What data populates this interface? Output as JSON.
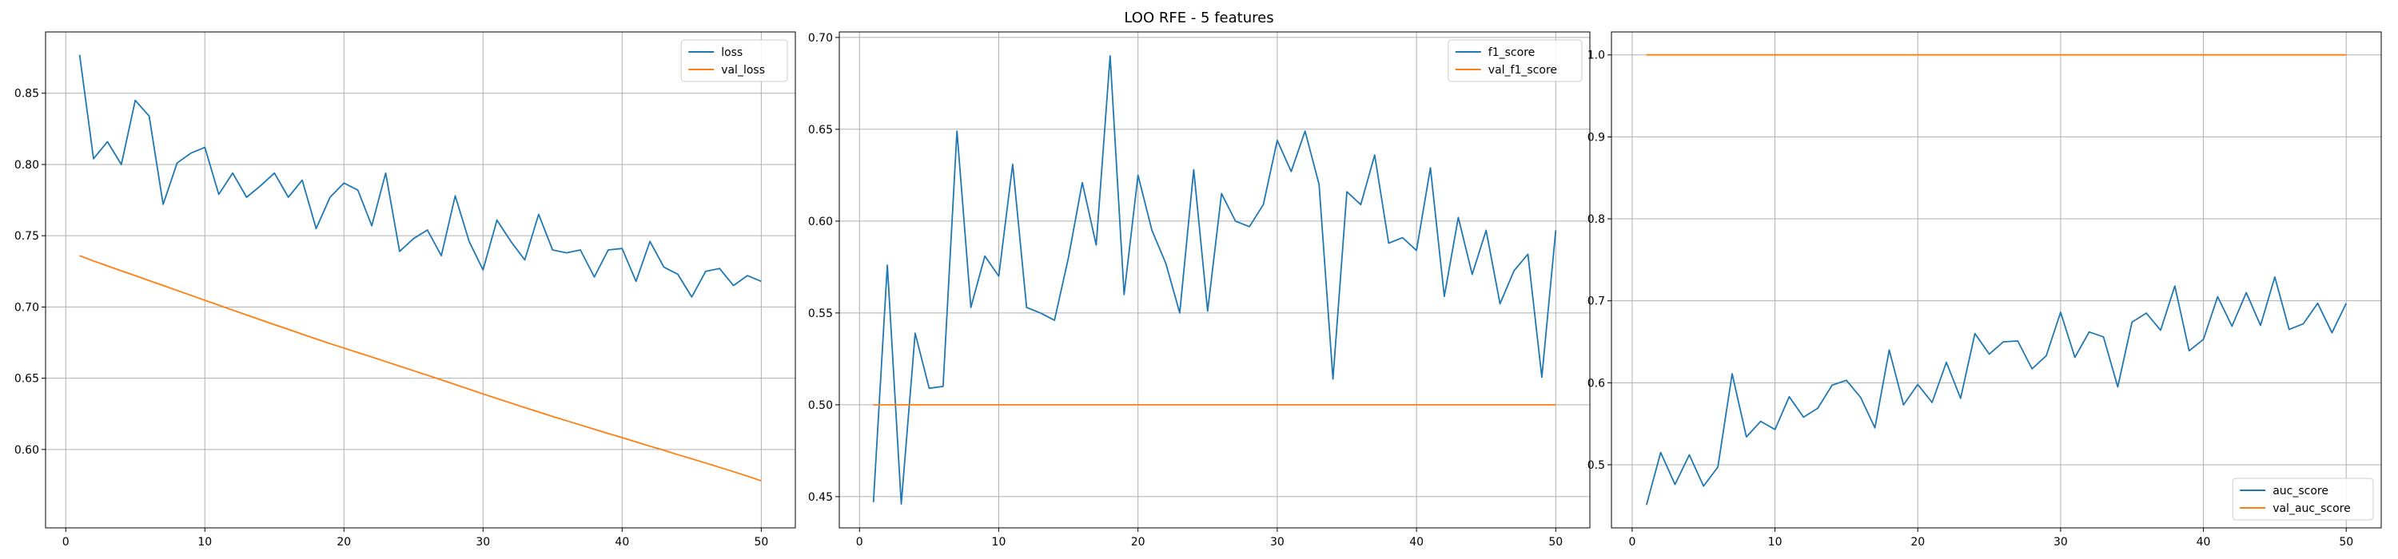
{
  "figure_title": "LOO RFE - 5 features",
  "colors": {
    "series1": "#1f77b4",
    "series2": "#ff7f0e",
    "grid": "#b0b0b0"
  },
  "chart_data": [
    {
      "type": "line",
      "title": "",
      "xlabel": "",
      "ylabel": "",
      "grid": true,
      "legend_position": "upper right",
      "xlim": [
        -1.45,
        52.45
      ],
      "ylim": [
        0.545,
        0.893
      ],
      "xticks": [
        0,
        10,
        20,
        30,
        40,
        50
      ],
      "yticks": [
        0.6,
        0.65,
        0.7,
        0.75,
        0.8,
        0.85
      ],
      "ytick_labels": [
        "0.60",
        "0.65",
        "0.70",
        "0.75",
        "0.80",
        "0.85"
      ],
      "x": [
        1,
        2,
        3,
        4,
        5,
        6,
        7,
        8,
        9,
        10,
        11,
        12,
        13,
        14,
        15,
        16,
        17,
        18,
        19,
        20,
        21,
        22,
        23,
        24,
        25,
        26,
        27,
        28,
        29,
        30,
        31,
        32,
        33,
        34,
        35,
        36,
        37,
        38,
        39,
        40,
        41,
        42,
        43,
        44,
        45,
        46,
        47,
        48,
        49,
        50
      ],
      "series": [
        {
          "name": "loss",
          "values": [
            0.877,
            0.804,
            0.816,
            0.8,
            0.845,
            0.834,
            0.772,
            0.801,
            0.808,
            0.812,
            0.779,
            0.794,
            0.777,
            0.785,
            0.794,
            0.777,
            0.789,
            0.755,
            0.777,
            0.787,
            0.782,
            0.757,
            0.794,
            0.739,
            0.748,
            0.754,
            0.736,
            0.778,
            0.746,
            0.726,
            0.761,
            0.746,
            0.733,
            0.765,
            0.74,
            0.738,
            0.74,
            0.721,
            0.74,
            0.741,
            0.718,
            0.746,
            0.728,
            0.723,
            0.707,
            0.725,
            0.727,
            0.715,
            0.722,
            0.718
          ]
        },
        {
          "name": "val_loss",
          "values": [
            0.736,
            0.7323,
            0.7288,
            0.7254,
            0.722,
            0.7185,
            0.7151,
            0.7116,
            0.7082,
            0.7047,
            0.7013,
            0.6978,
            0.6944,
            0.691,
            0.6876,
            0.6843,
            0.6809,
            0.6776,
            0.6743,
            0.6712,
            0.668,
            0.6649,
            0.6617,
            0.6585,
            0.6553,
            0.6521,
            0.6489,
            0.6456,
            0.6423,
            0.639,
            0.6358,
            0.6326,
            0.6294,
            0.6263,
            0.6232,
            0.6202,
            0.6172,
            0.6142,
            0.6112,
            0.6083,
            0.6053,
            0.6023,
            0.5994,
            0.5964,
            0.5935,
            0.5905,
            0.5875,
            0.5844,
            0.5813,
            0.578
          ]
        }
      ]
    },
    {
      "type": "line",
      "title": "",
      "xlabel": "",
      "ylabel": "",
      "grid": true,
      "legend_position": "upper right",
      "xlim": [
        -1.45,
        52.45
      ],
      "ylim": [
        0.433,
        0.703
      ],
      "xticks": [
        0,
        10,
        20,
        30,
        40,
        50
      ],
      "yticks": [
        0.45,
        0.5,
        0.55,
        0.6,
        0.65,
        0.7
      ],
      "ytick_labels": [
        "0.45",
        "0.50",
        "0.55",
        "0.60",
        "0.65",
        "0.70"
      ],
      "x": [
        1,
        2,
        3,
        4,
        5,
        6,
        7,
        8,
        9,
        10,
        11,
        12,
        13,
        14,
        15,
        16,
        17,
        18,
        19,
        20,
        21,
        22,
        23,
        24,
        25,
        26,
        27,
        28,
        29,
        30,
        31,
        32,
        33,
        34,
        35,
        36,
        37,
        38,
        39,
        40,
        41,
        42,
        43,
        44,
        45,
        46,
        47,
        48,
        49,
        50
      ],
      "series": [
        {
          "name": "f1_score",
          "values": [
            0.447,
            0.576,
            0.446,
            0.539,
            0.509,
            0.51,
            0.649,
            0.553,
            0.581,
            0.57,
            0.631,
            0.553,
            0.55,
            0.546,
            0.58,
            0.621,
            0.587,
            0.69,
            0.56,
            0.625,
            0.595,
            0.577,
            0.55,
            0.628,
            0.551,
            0.615,
            0.6,
            0.597,
            0.609,
            0.644,
            0.627,
            0.649,
            0.62,
            0.514,
            0.616,
            0.609,
            0.636,
            0.588,
            0.591,
            0.584,
            0.629,
            0.559,
            0.602,
            0.571,
            0.595,
            0.555,
            0.573,
            0.582,
            0.515,
            0.595
          ]
        },
        {
          "name": "val_f1_score",
          "values": [
            0.5,
            0.5,
            0.5,
            0.5,
            0.5,
            0.5,
            0.5,
            0.5,
            0.5,
            0.5,
            0.5,
            0.5,
            0.5,
            0.5,
            0.5,
            0.5,
            0.5,
            0.5,
            0.5,
            0.5,
            0.5,
            0.5,
            0.5,
            0.5,
            0.5,
            0.5,
            0.5,
            0.5,
            0.5,
            0.5,
            0.5,
            0.5,
            0.5,
            0.5,
            0.5,
            0.5,
            0.5,
            0.5,
            0.5,
            0.5,
            0.5,
            0.5,
            0.5,
            0.5,
            0.5,
            0.5,
            0.5,
            0.5,
            0.5,
            0.5
          ]
        }
      ]
    },
    {
      "type": "line",
      "title": "",
      "xlabel": "",
      "ylabel": "",
      "grid": true,
      "legend_position": "lower right",
      "xlim": [
        -1.45,
        52.45
      ],
      "ylim": [
        0.423,
        1.028
      ],
      "xticks": [
        0,
        10,
        20,
        30,
        40,
        50
      ],
      "yticks": [
        0.5,
        0.6,
        0.7,
        0.8,
        0.9,
        1.0
      ],
      "ytick_labels": [
        "0.5",
        "0.6",
        "0.7",
        "0.8",
        "0.9",
        "1.0"
      ],
      "x": [
        1,
        2,
        3,
        4,
        5,
        6,
        7,
        8,
        9,
        10,
        11,
        12,
        13,
        14,
        15,
        16,
        17,
        18,
        19,
        20,
        21,
        22,
        23,
        24,
        25,
        26,
        27,
        28,
        29,
        30,
        31,
        32,
        33,
        34,
        35,
        36,
        37,
        38,
        39,
        40,
        41,
        42,
        43,
        44,
        45,
        46,
        47,
        48,
        49,
        50
      ],
      "series": [
        {
          "name": "auc_score",
          "values": [
            0.451,
            0.515,
            0.476,
            0.512,
            0.474,
            0.497,
            0.611,
            0.534,
            0.553,
            0.543,
            0.583,
            0.558,
            0.569,
            0.597,
            0.603,
            0.582,
            0.545,
            0.64,
            0.573,
            0.598,
            0.576,
            0.625,
            0.581,
            0.66,
            0.635,
            0.65,
            0.651,
            0.617,
            0.633,
            0.686,
            0.631,
            0.662,
            0.656,
            0.595,
            0.674,
            0.685,
            0.664,
            0.718,
            0.639,
            0.653,
            0.705,
            0.669,
            0.71,
            0.67,
            0.729,
            0.665,
            0.672,
            0.697,
            0.661,
            0.697
          ]
        },
        {
          "name": "val_auc_score",
          "values": [
            1.0,
            1.0,
            1.0,
            1.0,
            1.0,
            1.0,
            1.0,
            1.0,
            1.0,
            1.0,
            1.0,
            1.0,
            1.0,
            1.0,
            1.0,
            1.0,
            1.0,
            1.0,
            1.0,
            1.0,
            1.0,
            1.0,
            1.0,
            1.0,
            1.0,
            1.0,
            1.0,
            1.0,
            1.0,
            1.0,
            1.0,
            1.0,
            1.0,
            1.0,
            1.0,
            1.0,
            1.0,
            1.0,
            1.0,
            1.0,
            1.0,
            1.0,
            1.0,
            1.0,
            1.0,
            1.0,
            1.0,
            1.0,
            1.0,
            1.0
          ]
        }
      ]
    }
  ]
}
